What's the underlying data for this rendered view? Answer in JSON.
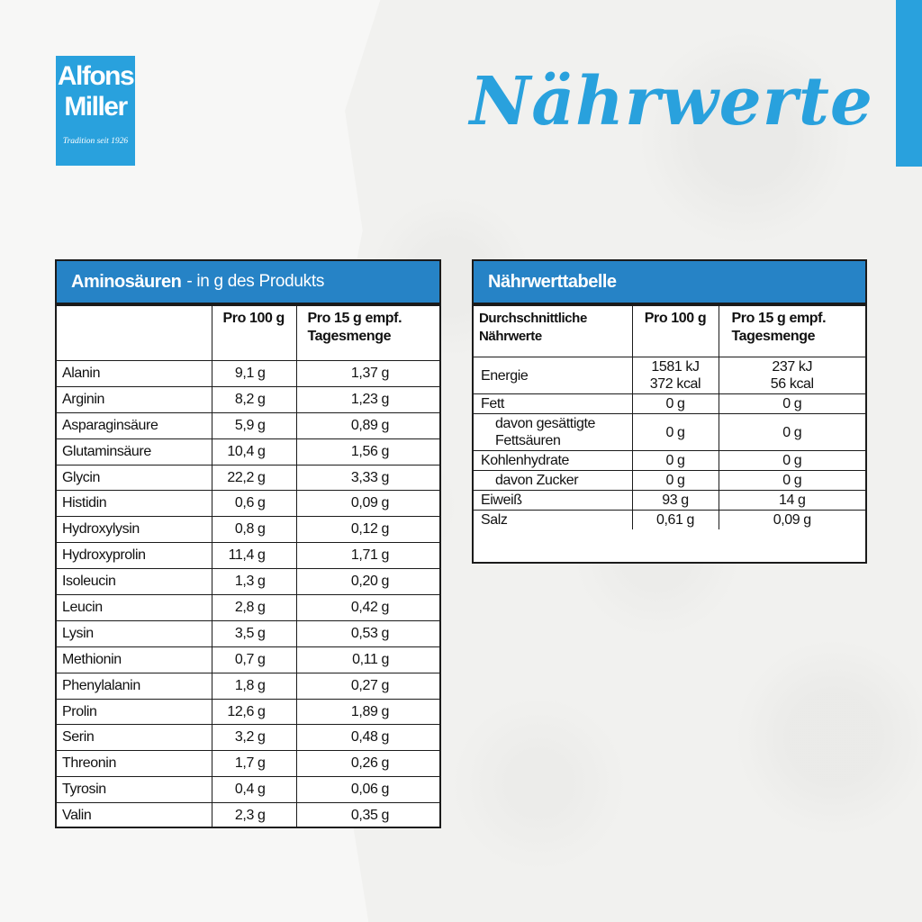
{
  "brand": {
    "line1": "Alfons",
    "line2": "Miller",
    "tagline": "Tradition seit 1926"
  },
  "page_title": "Nährwerte",
  "colors": {
    "accent": "#29a1dd",
    "header_blue": "#2683c6",
    "border": "#1b1b1b"
  },
  "amino": {
    "title": "Aminosäuren",
    "subtitle": "- in g des Produkts",
    "col_name": "",
    "col_100": "Pro 100 g",
    "col_15": "Pro 15 g empf. Tagesmenge",
    "rows": [
      {
        "name": "Alanin",
        "p100": "9,1 g",
        "p15": "1,37 g"
      },
      {
        "name": "Arginin",
        "p100": "8,2 g",
        "p15": "1,23 g"
      },
      {
        "name": "Asparaginsäure",
        "p100": "5,9 g",
        "p15": "0,89 g"
      },
      {
        "name": "Glutaminsäure",
        "p100": "10,4 g",
        "p15": "1,56 g"
      },
      {
        "name": "Glycin",
        "p100": "22,2 g",
        "p15": "3,33 g"
      },
      {
        "name": "Histidin",
        "p100": "0,6 g",
        "p15": "0,09 g"
      },
      {
        "name": "Hydroxylysin",
        "p100": "0,8 g",
        "p15": "0,12 g"
      },
      {
        "name": "Hydroxyprolin",
        "p100": "11,4 g",
        "p15": "1,71 g"
      },
      {
        "name": "Isoleucin",
        "p100": "1,3 g",
        "p15": "0,20 g"
      },
      {
        "name": "Leucin",
        "p100": "2,8 g",
        "p15": "0,42 g"
      },
      {
        "name": "Lysin",
        "p100": "3,5 g",
        "p15": "0,53 g"
      },
      {
        "name": "Methionin",
        "p100": "0,7 g",
        "p15": "0,11 g"
      },
      {
        "name": "Phenylalanin",
        "p100": "1,8 g",
        "p15": "0,27 g"
      },
      {
        "name": "Prolin",
        "p100": "12,6 g",
        "p15": "1,89 g"
      },
      {
        "name": "Serin",
        "p100": "3,2 g",
        "p15": "0,48 g"
      },
      {
        "name": "Threonin",
        "p100": "1,7 g",
        "p15": "0,26 g"
      },
      {
        "name": "Tyrosin",
        "p100": "0,4 g",
        "p15": "0,06 g"
      },
      {
        "name": "Valin",
        "p100": "2,3 g",
        "p15": "0,35 g"
      }
    ]
  },
  "nutrition": {
    "title": "Nährwerttabelle",
    "col_name": "Durchschnittliche Nährwerte",
    "col_100": "Pro 100 g",
    "col_15": "Pro 15 g empf. Tagesmenge",
    "rows": [
      {
        "name": "Energie",
        "p100": "1581 kJ\n372 kcal",
        "p15": "237 kJ\n56 kcal",
        "indent": false
      },
      {
        "name": "Fett",
        "p100": "0 g",
        "p15": "0 g",
        "indent": false
      },
      {
        "name": "davon gesättigte Fettsäuren",
        "p100": "0 g",
        "p15": "0 g",
        "indent": true
      },
      {
        "name": "Kohlenhydrate",
        "p100": "0 g",
        "p15": "0 g",
        "indent": false
      },
      {
        "name": "davon Zucker",
        "p100": "0 g",
        "p15": "0 g",
        "indent": true
      },
      {
        "name": "Eiweiß",
        "p100": "93 g",
        "p15": "14 g",
        "indent": false
      },
      {
        "name": "Salz",
        "p100": "0,61 g",
        "p15": "0,09 g",
        "indent": false
      }
    ]
  }
}
